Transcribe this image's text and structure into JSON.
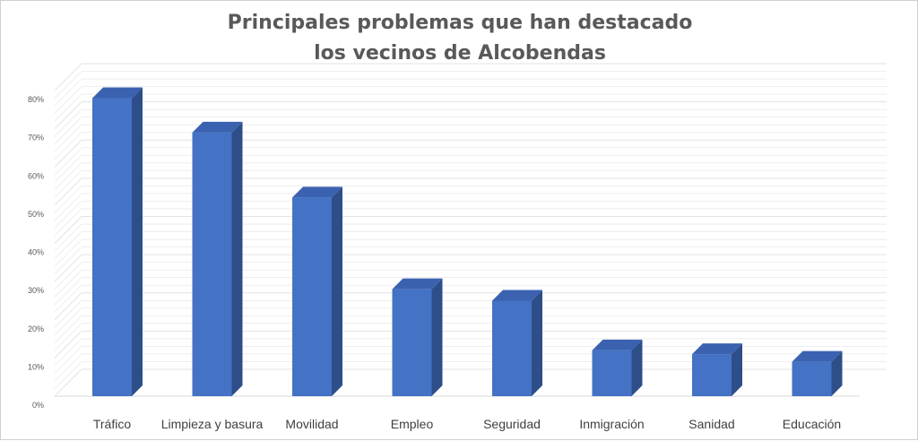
{
  "chart_data": {
    "type": "bar",
    "title_lines": [
      "Principales problemas que han destacado",
      "los vecinos de Alcobendas"
    ],
    "categories": [
      "Tráfico",
      "Limpieza y basura",
      "Movilidad",
      "Empleo",
      "Seguridad",
      "Inmigración",
      "Sanidad",
      "Educación"
    ],
    "series": [
      {
        "values": [
          78,
          69,
          52,
          28,
          25,
          12,
          11,
          9
        ]
      }
    ],
    "ylim": [
      0,
      80
    ],
    "yticks": [
      0,
      10,
      20,
      30,
      40,
      50,
      60,
      70,
      80
    ],
    "ytick_labels": [
      "0%",
      "10%",
      "20%",
      "30%",
      "40%",
      "50%",
      "60%",
      "70%",
      "80%"
    ],
    "grid": true,
    "three_d": true,
    "colors": {
      "bar_front": "#4472C4",
      "bar_side": "#2E4E8A",
      "bar_top": "#3B62B0",
      "grid": "#e3e3e3"
    }
  }
}
